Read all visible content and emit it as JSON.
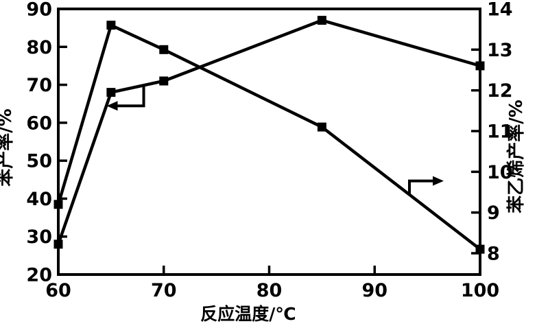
{
  "chart_data": {
    "type": "line",
    "title": "",
    "xlabel": "反应温度/℃",
    "x_range": [
      60,
      100
    ],
    "x_ticks": [
      60,
      70,
      80,
      90,
      100
    ],
    "axes": {
      "left": {
        "label": "苯产率/%",
        "range": [
          20,
          90
        ],
        "ticks": [
          20,
          30,
          40,
          50,
          60,
          70,
          80,
          90
        ]
      },
      "right": {
        "label": "苯乙烯产率/%",
        "range": [
          8,
          14
        ],
        "ticks": [
          8,
          9,
          10,
          11,
          12,
          13,
          14
        ]
      }
    },
    "series": [
      {
        "name": "苯产率",
        "axis": "left",
        "marker": "filled-square",
        "x": [
          60,
          65,
          70,
          85,
          100
        ],
        "y": [
          28,
          68,
          71,
          87,
          75
        ]
      },
      {
        "name": "苯乙烯产率",
        "axis": "right",
        "marker": "filled-square",
        "x": [
          60,
          65,
          70,
          85,
          100
        ],
        "y": [
          9.2,
          13.6,
          13.0,
          11.1,
          8.1
        ]
      }
    ],
    "annotations": [
      {
        "type": "axis-pointer-arrow",
        "series": "苯产率",
        "points_to": "left-axis",
        "attach_x": 68.1,
        "connector": "down",
        "direction": "left"
      },
      {
        "type": "axis-pointer-arrow",
        "series": "苯乙烯产率",
        "points_to": "right-axis",
        "attach_x": 93.3,
        "connector": "up",
        "direction": "right"
      }
    ],
    "grid": false,
    "legend": false,
    "colors": {
      "foreground": "#000000",
      "background": "#ffffff"
    }
  }
}
